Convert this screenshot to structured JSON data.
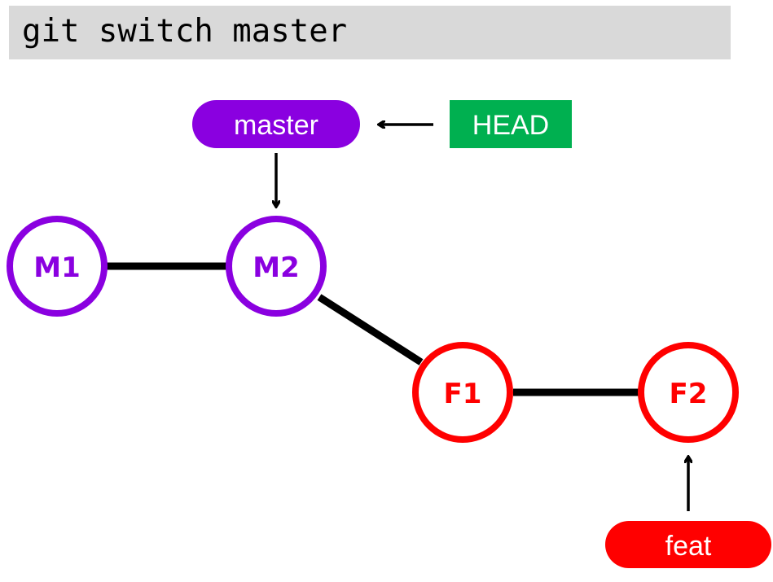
{
  "command": "git switch master",
  "colors": {
    "master": "#8a00e0",
    "feature": "#ff0000",
    "head": "#00b050",
    "edge": "#000000",
    "command_bg": "#d9d9d9"
  },
  "labels": {
    "master": "master",
    "head": "HEAD",
    "feat": "feat"
  },
  "commits": {
    "m1": "M1",
    "m2": "M2",
    "f1": "F1",
    "f2": "F2"
  }
}
